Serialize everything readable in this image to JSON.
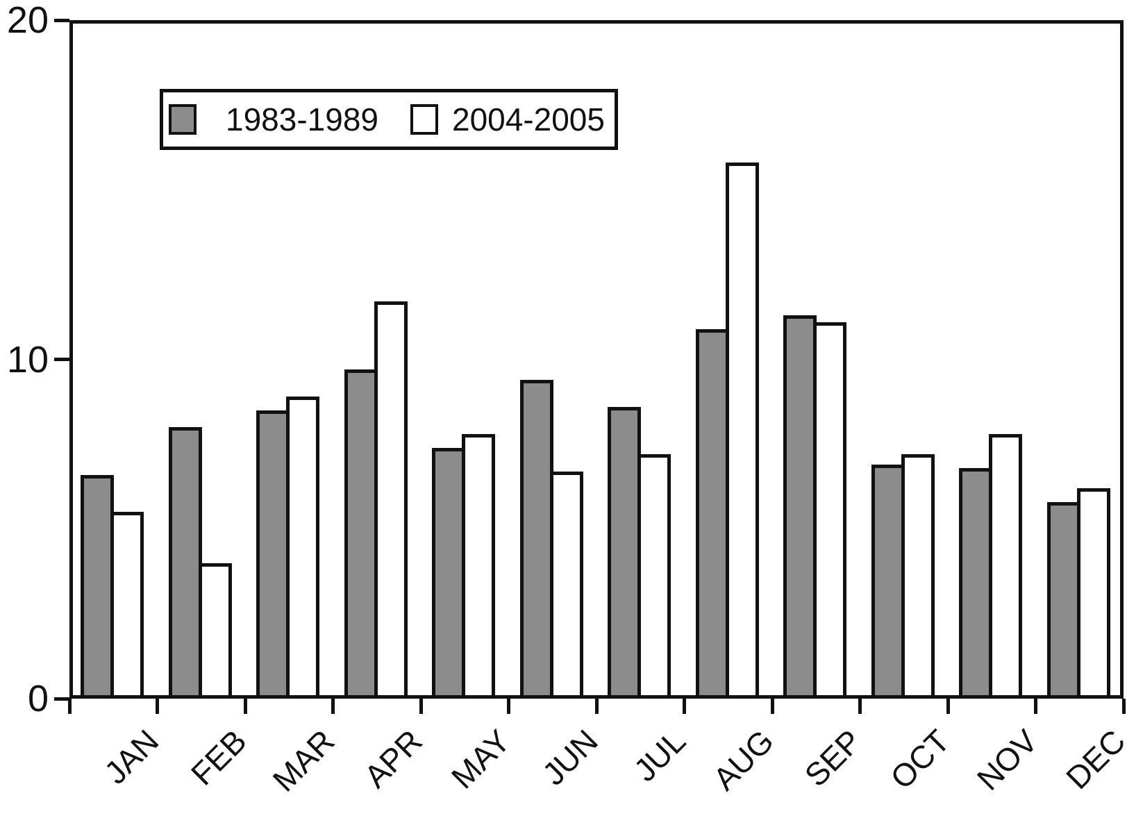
{
  "chart_data": {
    "type": "bar",
    "title": "",
    "xlabel": "",
    "ylabel": "",
    "categories": [
      "JAN",
      "FEB",
      "MAR",
      "APR",
      "MAY",
      "JUN",
      "JUL",
      "AUG",
      "SEP",
      "OCT",
      "NOV",
      "DEC"
    ],
    "series": [
      {
        "name": "1983-1989",
        "color": "#8c8c8c",
        "values": [
          6.6,
          8.0,
          8.5,
          9.7,
          7.4,
          9.4,
          8.6,
          10.9,
          11.3,
          6.9,
          6.8,
          5.8
        ]
      },
      {
        "name": "2004-2005",
        "color": "#ffffff",
        "values": [
          5.5,
          4.0,
          8.9,
          11.7,
          7.8,
          6.7,
          7.2,
          15.8,
          11.1,
          7.2,
          7.8,
          6.2
        ]
      }
    ],
    "ylim": [
      0,
      20
    ],
    "yticks": [
      0,
      10,
      20
    ],
    "grid": false,
    "legend_position": "top-left-inside",
    "axis_color": "#111111",
    "background_color": "#ffffff"
  }
}
